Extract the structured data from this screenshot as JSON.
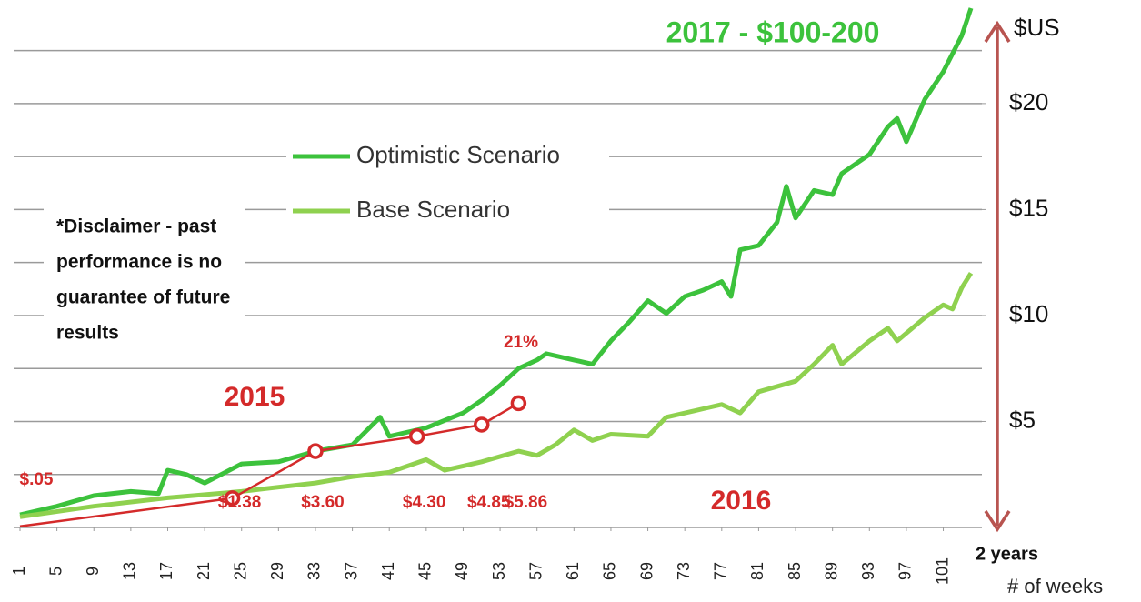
{
  "chart_data": {
    "type": "line",
    "title": "2017 - $100-200",
    "y_label": "$US",
    "x_label": "# of weeks",
    "x_end_label": "2 years",
    "annotations": [
      "2015",
      "2016",
      "21%"
    ],
    "disclaimer": [
      "*Disclaimer - past",
      "performance is no",
      "guarantee of future",
      "results"
    ],
    "xlim": [
      1,
      104
    ],
    "xticks": [
      1,
      5,
      9,
      13,
      17,
      21,
      25,
      29,
      33,
      37,
      41,
      45,
      49,
      53,
      57,
      61,
      65,
      69,
      73,
      77,
      81,
      85,
      89,
      93,
      97,
      101
    ],
    "ylim": [
      0,
      24.5
    ],
    "yticks": [
      {
        "value": 5,
        "label": "$5"
      },
      {
        "value": 10,
        "label": "$10"
      },
      {
        "value": 15,
        "label": "$15"
      },
      {
        "value": 20,
        "label": "$20"
      }
    ],
    "ygrid": [
      2.5,
      5,
      7.5,
      10,
      12.5,
      15,
      17.5,
      20,
      22.5
    ],
    "grid": true,
    "series": [
      {
        "name": "Optimistic Scenario",
        "color": "#3cc23c",
        "x": [
          1,
          5,
          9,
          13,
          16,
          17,
          19,
          21,
          25,
          29,
          33,
          37,
          40,
          41,
          45,
          49,
          51,
          53,
          55,
          57,
          58,
          61,
          63,
          65,
          67,
          69,
          71,
          73,
          75,
          77,
          78,
          79,
          81,
          83,
          84,
          85,
          87,
          89,
          90,
          93,
          95,
          96,
          97,
          99,
          101,
          103,
          104
        ],
        "values": [
          0.6,
          1.0,
          1.5,
          1.7,
          1.6,
          2.7,
          2.5,
          2.1,
          3.0,
          3.1,
          3.6,
          3.9,
          5.2,
          4.3,
          4.7,
          5.4,
          6.0,
          6.7,
          7.5,
          7.9,
          8.2,
          7.9,
          7.7,
          8.8,
          9.7,
          10.7,
          10.1,
          10.9,
          11.2,
          11.6,
          10.9,
          13.1,
          13.3,
          14.4,
          16.1,
          14.6,
          15.9,
          15.7,
          16.7,
          17.6,
          18.9,
          19.3,
          18.2,
          20.2,
          21.5,
          23.2,
          24.5
        ]
      },
      {
        "name": "Base Scenario",
        "color": "#8fd14f",
        "x": [
          1,
          9,
          17,
          25,
          29,
          33,
          37,
          41,
          45,
          47,
          51,
          55,
          57,
          59,
          61,
          63,
          65,
          69,
          71,
          75,
          77,
          79,
          81,
          85,
          87,
          89,
          90,
          93,
          95,
          96,
          99,
          101,
          102,
          103,
          104
        ],
        "values": [
          0.5,
          1.0,
          1.4,
          1.7,
          1.9,
          2.1,
          2.4,
          2.6,
          3.2,
          2.7,
          3.1,
          3.6,
          3.4,
          3.9,
          4.6,
          4.1,
          4.4,
          4.3,
          5.2,
          5.6,
          5.8,
          5.4,
          6.4,
          6.9,
          7.7,
          8.6,
          7.7,
          8.8,
          9.4,
          8.8,
          9.9,
          10.5,
          10.3,
          11.3,
          12.0
        ]
      }
    ],
    "actual": {
      "color": "#d42a2a",
      "x": [
        1,
        24,
        33,
        44,
        51,
        55
      ],
      "values": [
        0.05,
        1.38,
        3.6,
        4.3,
        4.85,
        5.86
      ],
      "value_labels": [
        "$.05",
        "$1.38",
        "$3.60",
        "$4.30",
        "$4.85",
        "$5.86"
      ]
    }
  }
}
